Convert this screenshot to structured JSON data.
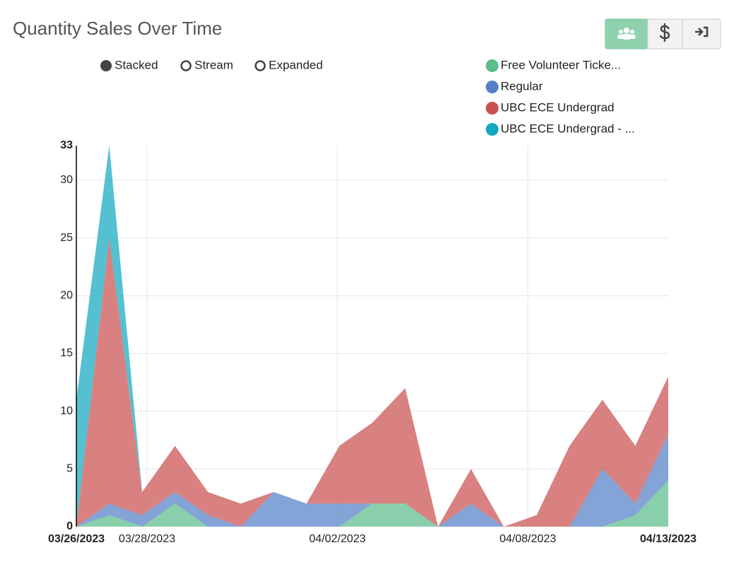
{
  "chart_data": {
    "type": "stacked-area",
    "title": "Quantity Sales Over Time",
    "controls": [
      "Stacked",
      "Stream",
      "Expanded"
    ],
    "selected_control": 0,
    "x": [
      0,
      1,
      2,
      3,
      4,
      5,
      6,
      7,
      8,
      9,
      10,
      11,
      12,
      13,
      14,
      15,
      16,
      17,
      18
    ],
    "xlim": [
      0,
      18
    ],
    "xticks": [
      {
        "value": 0,
        "label": "03/26/2023"
      },
      {
        "value": 2.15,
        "label": "03/28/2023"
      },
      {
        "value": 7.94,
        "label": "04/02/2023"
      },
      {
        "value": 13.73,
        "label": "04/08/2023"
      },
      {
        "value": 18,
        "label": "04/13/2023"
      }
    ],
    "ylim": [
      0,
      33
    ],
    "yticks": [
      0,
      5,
      10,
      15,
      20,
      25,
      30,
      33
    ],
    "grid": true,
    "series": [
      {
        "name": "Free Volunteer Ticke...",
        "color": "#5cbd8a",
        "values": [
          0,
          1,
          0,
          2,
          0,
          0,
          0,
          0,
          0,
          2,
          2,
          0,
          0,
          0,
          0,
          0,
          0,
          1,
          4
        ]
      },
      {
        "name": "Regular",
        "color": "#5580c6",
        "values": [
          0,
          1,
          1,
          1,
          1,
          0,
          3,
          2,
          2,
          0,
          0,
          0,
          2,
          0,
          0,
          0,
          5,
          1,
          4
        ]
      },
      {
        "name": "UBC ECE Undergrad",
        "color": "#c9504f",
        "values": [
          0,
          23,
          2,
          4,
          2,
          2,
          0,
          0,
          5,
          7,
          10,
          0,
          3,
          0,
          1,
          7,
          6,
          5,
          5
        ]
      },
      {
        "name": "UBC ECE Undergrad - ...",
        "color": "#13a8bf",
        "values": [
          11,
          8,
          0,
          0,
          0,
          0,
          0,
          0,
          0,
          0,
          0,
          0,
          0,
          0,
          0,
          0,
          0,
          0,
          0
        ]
      }
    ]
  }
}
